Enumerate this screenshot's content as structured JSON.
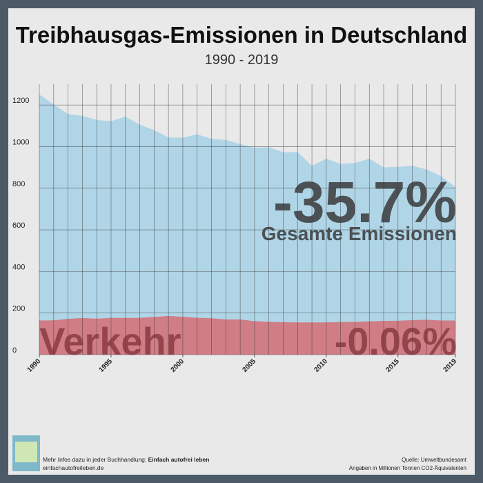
{
  "chart_data": {
    "type": "area",
    "title": "Treibhausgas-Emissionen in Deutschland",
    "subtitle": "1990 - 2019",
    "x": [
      1990,
      1991,
      1992,
      1993,
      1994,
      1995,
      1996,
      1997,
      1998,
      1999,
      2000,
      2001,
      2002,
      2003,
      2004,
      2005,
      2006,
      2007,
      2008,
      2009,
      2010,
      2011,
      2012,
      2013,
      2014,
      2015,
      2016,
      2017,
      2018,
      2019
    ],
    "series": [
      {
        "name": "Gesamte Emissionen",
        "color": "#a9d3e6",
        "values": [
          1251,
          1202,
          1156,
          1148,
          1128,
          1122,
          1144,
          1105,
          1079,
          1044,
          1043,
          1059,
          1037,
          1032,
          1012,
          995,
          997,
          972,
          974,
          908,
          942,
          917,
          921,
          942,
          900,
          903,
          908,
          890,
          858,
          805
        ]
      },
      {
        "name": "Verkehr",
        "color": "#d4737a",
        "values": [
          164,
          165,
          172,
          176,
          173,
          177,
          176,
          177,
          181,
          186,
          182,
          177,
          175,
          169,
          169,
          161,
          158,
          156,
          155,
          155,
          155,
          157,
          157,
          160,
          162,
          163,
          166,
          168,
          164,
          164
        ]
      }
    ],
    "annotations": {
      "total_change": "-35.7%",
      "transport_change": "-0.06%"
    },
    "xlim": [
      1990,
      2019
    ],
    "xticks": [
      1990,
      1995,
      2000,
      2005,
      2010,
      2015,
      2019
    ],
    "ylim": [
      0,
      1300
    ],
    "yticks": [
      0,
      200,
      400,
      600,
      800,
      1000,
      1200
    ],
    "grid": true
  },
  "footer": {
    "info": "Mehr Infos dazu in jeder Buchhandlung:",
    "book": "Einfach autofrei leben",
    "website": "einfachautofreileben.de",
    "source": "Quelle: Umweltbundesamt",
    "unit": "Angaben in Millionen Tonnen CO2-Äquivalenten"
  }
}
